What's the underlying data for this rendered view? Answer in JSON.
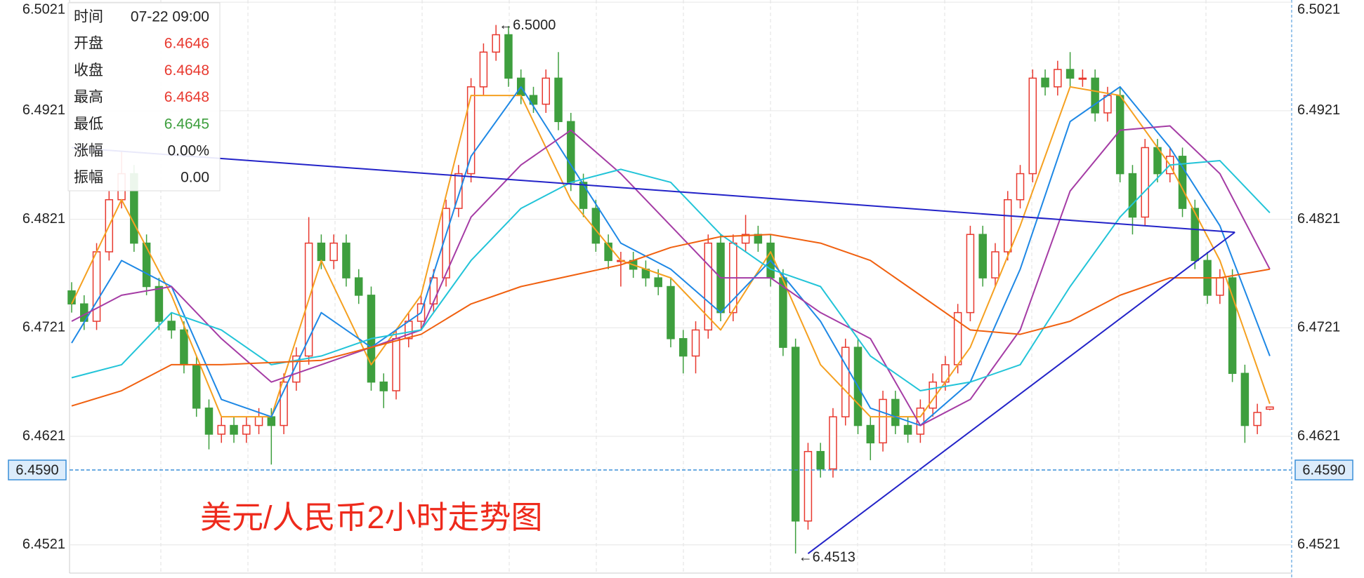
{
  "chart_data": {
    "type": "candlestick",
    "title": "美元/人民币2小时走势图",
    "ylim": [
      6.4495,
      6.5023
    ],
    "yticks": [
      6.4521,
      6.4621,
      6.4721,
      6.4821,
      6.4921,
      6.5021
    ],
    "grid": true,
    "up_color": "#e8392f",
    "down_color": "#3e9f3e",
    "open": [
      6.4755,
      6.4743,
      6.4727,
      6.4791,
      6.4839,
      6.4863,
      6.4799,
      6.4759,
      6.4727,
      6.4719,
      6.4687,
      6.4647,
      6.4623,
      6.4631,
      6.4623,
      6.4631,
      6.4639,
      6.4631,
      6.4671,
      6.4695,
      6.4799,
      6.4783,
      6.4799,
      6.4767,
      6.4751,
      6.4671,
      6.4663,
      6.4711,
      6.4727,
      6.4743,
      6.4767,
      6.4831,
      6.4863,
      6.4943,
      6.4975,
      6.4991,
      6.4951,
      6.4935,
      6.4927,
      6.4951,
      6.4911,
      6.4855,
      6.4831,
      6.4799,
      6.4783,
      6.4783,
      6.4775,
      6.4767,
      6.4759,
      6.4711,
      6.4695,
      6.4719,
      6.4799,
      6.4735,
      6.4799,
      6.4807,
      6.4799,
      6.4767,
      6.4703,
      6.4543,
      6.4607,
      6.4591,
      6.4639,
      6.4703,
      6.4631,
      6.4615,
      6.4655,
      6.4631,
      6.4623,
      6.4647,
      6.4671,
      6.4687,
      6.4735,
      6.4807,
      6.4767,
      6.4791,
      6.4839,
      6.4863,
      6.4951,
      6.4943,
      6.4959,
      6.4951,
      6.4951,
      6.4919,
      6.4935,
      6.4863,
      6.4823,
      6.4887,
      6.4863,
      6.4879,
      6.4831,
      6.4783,
      6.4751,
      6.4767,
      6.4679,
      6.4631,
      6.4646
    ],
    "high": [
      6.4763,
      6.4751,
      6.4799,
      6.4847,
      6.4883,
      6.4871,
      6.4807,
      6.4767,
      6.4735,
      6.4727,
      6.4695,
      6.4655,
      6.4639,
      6.4639,
      6.4639,
      6.4647,
      6.4647,
      6.4679,
      6.4703,
      6.4823,
      6.4807,
      6.4807,
      6.4807,
      6.4775,
      6.4759,
      6.4679,
      6.4719,
      6.4735,
      6.4751,
      6.4775,
      6.4839,
      6.4871,
      6.4951,
      6.4983,
      6.5,
      6.4999,
      6.4959,
      6.4943,
      6.4959,
      6.4975,
      6.4919,
      6.4863,
      6.4839,
      6.4807,
      6.4791,
      6.4791,
      6.4783,
      6.4775,
      6.4767,
      6.4719,
      6.4727,
      6.4807,
      6.4807,
      6.4807,
      6.4825,
      6.4815,
      6.4807,
      6.4775,
      6.4711,
      6.4615,
      6.4615,
      6.4647,
      6.4711,
      6.4711,
      6.4639,
      6.4663,
      6.4663,
      6.4639,
      6.4655,
      6.4679,
      6.4695,
      6.4743,
      6.4815,
      6.4815,
      6.4799,
      6.4847,
      6.4871,
      6.4959,
      6.4959,
      6.4967,
      6.4975,
      6.4959,
      6.4959,
      6.4943,
      6.4943,
      6.4871,
      6.4895,
      6.4895,
      6.4887,
      6.4887,
      6.4839,
      6.4791,
      6.4775,
      6.4775,
      6.4687,
      6.4651,
      6.4648
    ],
    "low": [
      6.4735,
      6.4719,
      6.4719,
      6.4783,
      6.4831,
      6.4791,
      6.4751,
      6.4719,
      6.4711,
      6.4679,
      6.4639,
      6.4609,
      6.4615,
      6.4615,
      6.4615,
      6.4623,
      6.4595,
      6.4623,
      6.4663,
      6.4687,
      6.4775,
      6.4775,
      6.4759,
      6.4743,
      6.4663,
      6.4647,
      6.4655,
      6.4703,
      6.4719,
      6.4735,
      6.4759,
      6.4823,
      6.4855,
      6.4935,
      6.4967,
      6.4943,
      6.4927,
      6.4919,
      6.4919,
      6.4903,
      6.4847,
      6.4823,
      6.4791,
      6.4775,
      6.4759,
      6.4767,
      6.4759,
      6.4751,
      6.4703,
      6.4679,
      6.4679,
      6.4711,
      6.4727,
      6.4727,
      6.4791,
      6.4791,
      6.4759,
      6.4695,
      6.4513,
      6.4535,
      6.4583,
      6.4583,
      6.4631,
      6.4623,
      6.4599,
      6.4607,
      6.4623,
      6.4615,
      6.4615,
      6.4639,
      6.4663,
      6.4679,
      6.4727,
      6.4759,
      6.4759,
      6.4783,
      6.4831,
      6.4855,
      6.4935,
      6.4935,
      6.4943,
      6.4943,
      6.4911,
      6.4911,
      6.4855,
      6.4807,
      6.4815,
      6.4855,
      6.4855,
      6.4823,
      6.4775,
      6.4743,
      6.4743,
      6.4671,
      6.4615,
      6.4623,
      6.4645
    ],
    "close": [
      6.4743,
      6.4727,
      6.4791,
      6.4839,
      6.4863,
      6.4799,
      6.4759,
      6.4727,
      6.4719,
      6.4687,
      6.4647,
      6.4623,
      6.4631,
      6.4623,
      6.4631,
      6.4639,
      6.4631,
      6.4671,
      6.4695,
      6.4799,
      6.4783,
      6.4799,
      6.4767,
      6.4751,
      6.4671,
      6.4663,
      6.4711,
      6.4727,
      6.4743,
      6.4767,
      6.4831,
      6.4863,
      6.4943,
      6.4975,
      6.4991,
      6.4951,
      6.4935,
      6.4927,
      6.4951,
      6.4911,
      6.4855,
      6.4831,
      6.4799,
      6.4783,
      6.4783,
      6.4775,
      6.4767,
      6.4759,
      6.4711,
      6.4695,
      6.4719,
      6.4799,
      6.4735,
      6.4799,
      6.4807,
      6.4799,
      6.4767,
      6.4703,
      6.4543,
      6.4607,
      6.4591,
      6.4639,
      6.4703,
      6.4631,
      6.4615,
      6.4655,
      6.4631,
      6.4623,
      6.4647,
      6.4671,
      6.4687,
      6.4735,
      6.4807,
      6.4767,
      6.4791,
      6.4839,
      6.4863,
      6.4951,
      6.4943,
      6.4959,
      6.4951,
      6.4951,
      6.4919,
      6.4935,
      6.4863,
      6.4823,
      6.4887,
      6.4863,
      6.4879,
      6.4831,
      6.4783,
      6.4751,
      6.4767,
      6.4679,
      6.4631,
      6.4643,
      6.4648
    ],
    "ma_x": [
      0,
      4,
      8,
      12,
      16,
      20,
      24,
      28,
      32,
      36,
      40,
      44,
      48,
      52,
      56,
      60,
      64,
      68,
      72,
      76,
      80,
      84,
      88,
      92,
      96
    ],
    "series": [
      {
        "color": "#f5a020",
        "values": [
          6.4743,
          6.4839,
          6.4751,
          6.4639,
          6.4639,
          6.4783,
          6.4687,
          6.4751,
          6.4935,
          6.4935,
          6.4839,
          6.4783,
          6.4767,
          6.4719,
          6.4791,
          6.4687,
          6.4639,
          6.4639,
          6.4703,
          6.4815,
          6.4943,
          6.4935,
          6.4871,
          6.4783,
          6.4651
        ]
      },
      {
        "color": "#1e88e5",
        "values": [
          6.4707,
          6.4783,
          6.4759,
          6.4655,
          6.4639,
          6.4735,
          6.4703,
          6.4735,
          6.4879,
          6.4943,
          6.4871,
          6.4799,
          6.4775,
          6.4735,
          6.4783,
          6.4727,
          6.4647,
          6.4631,
          6.4671,
          6.4775,
          6.4911,
          6.4943,
          6.4887,
          6.4815,
          6.4695
        ]
      },
      {
        "color": "#a53ca5",
        "values": [
          6.4727,
          6.4751,
          6.4759,
          6.4711,
          6.4671,
          6.4687,
          6.4703,
          6.4719,
          6.4823,
          6.4871,
          6.4903,
          6.4863,
          6.4815,
          6.4767,
          6.4767,
          6.4735,
          6.4711,
          6.4631,
          6.4655,
          6.4719,
          6.4847,
          6.4903,
          6.4907,
          6.4863,
          6.4775
        ]
      },
      {
        "color": "#22c4d8",
        "values": [
          6.4675,
          6.4687,
          6.4735,
          6.4719,
          6.4687,
          6.4695,
          6.4711,
          6.4719,
          6.4783,
          6.4831,
          6.4855,
          6.4867,
          6.4855,
          6.4807,
          6.4775,
          6.4759,
          6.4695,
          6.4663,
          6.4671,
          6.4687,
          6.4759,
          6.4823,
          6.4871,
          6.4875,
          6.4827
        ]
      },
      {
        "color": "#f0600f",
        "values": [
          6.4649,
          6.4663,
          6.4687,
          6.4687,
          6.4689,
          6.4691,
          6.4703,
          6.4715,
          6.4743,
          6.4759,
          6.4769,
          6.4779,
          6.4795,
          6.4805,
          6.4807,
          6.4799,
          6.4783,
          6.4751,
          6.4719,
          6.4715,
          6.4727,
          6.4751,
          6.4767,
          6.4767,
          6.4775
        ]
      }
    ],
    "trendlines": [
      {
        "color": "#2323c8",
        "x": [
          0,
          93.2
        ],
        "values": [
          6.4887,
          6.4809
        ]
      },
      {
        "color": "#2323c8",
        "x": [
          59,
          93.2
        ],
        "values": [
          6.4513,
          6.4809
        ]
      }
    ],
    "annotations": [
      {
        "text": "←6.5000",
        "x": 34,
        "value": 6.5
      },
      {
        "text": "←6.4513",
        "x": 58,
        "value": 6.4513
      }
    ],
    "price_line": {
      "value": 6.459,
      "label": "6.4590"
    },
    "tooltip": [
      {
        "label": "时间",
        "value": "07-22 09:00",
        "color": "#222222"
      },
      {
        "label": "开盘",
        "value": "6.4646",
        "color": "#e8392f"
      },
      {
        "label": "收盘",
        "value": "6.4648",
        "color": "#e8392f"
      },
      {
        "label": "最高",
        "value": "6.4648",
        "color": "#e8392f"
      },
      {
        "label": "最低",
        "value": "6.4645",
        "color": "#3e9f3e"
      },
      {
        "label": "涨幅",
        "value": "0.00%",
        "color": "#222222"
      },
      {
        "label": "振幅",
        "value": "0.00",
        "color": "#222222"
      }
    ]
  }
}
